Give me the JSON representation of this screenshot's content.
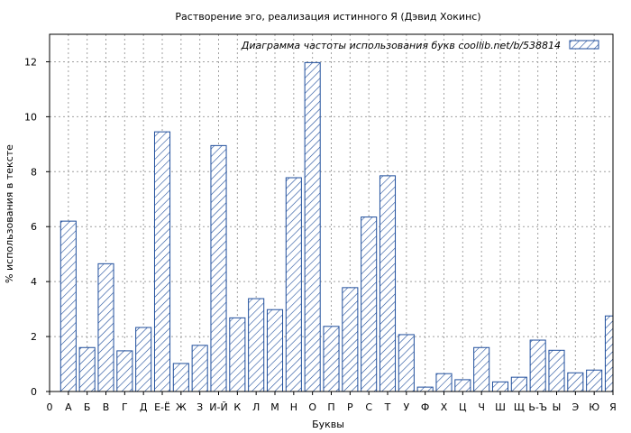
{
  "chart_data": {
    "type": "bar",
    "title": "Растворение эго, реализация истинного Я (Дэвид Хокинс)",
    "xlabel": "Буквы",
    "ylabel": "% использования в тексте",
    "ylim": [
      0,
      13
    ],
    "yticks": [
      0,
      2,
      4,
      6,
      8,
      10,
      12
    ],
    "grid": true,
    "legend_position": "top-right",
    "series": [
      {
        "name": "Диаграмма частоты использования букв  coollib.net/b/538814",
        "values": [
          0,
          6.2,
          1.6,
          4.65,
          1.48,
          2.33,
          9.45,
          1.02,
          1.68,
          8.95,
          2.68,
          3.38,
          2.98,
          7.78,
          11.97,
          2.37,
          3.78,
          6.35,
          7.85,
          2.07,
          0.16,
          0.65,
          0.43,
          1.6,
          0.35,
          0.52,
          1.87,
          1.5,
          0.68,
          0.78,
          2.75
        ]
      }
    ],
    "categories": [
      "0",
      "А",
      "Б",
      "В",
      "Г",
      "Д",
      "Е-Ё",
      "Ж",
      "З",
      "И-Й",
      "К",
      "Л",
      "М",
      "Н",
      "О",
      "П",
      "Р",
      "С",
      "Т",
      "У",
      "Ф",
      "Х",
      "Ц",
      "Ч",
      "Ш",
      "Щ",
      "Ь-Ъ",
      "Ы",
      "Э",
      "Ю",
      "Я"
    ],
    "colors": {
      "bar_stroke": "#1f4e9c",
      "hatch": "#1f4e9c",
      "grid": "#a0a0a0"
    }
  }
}
